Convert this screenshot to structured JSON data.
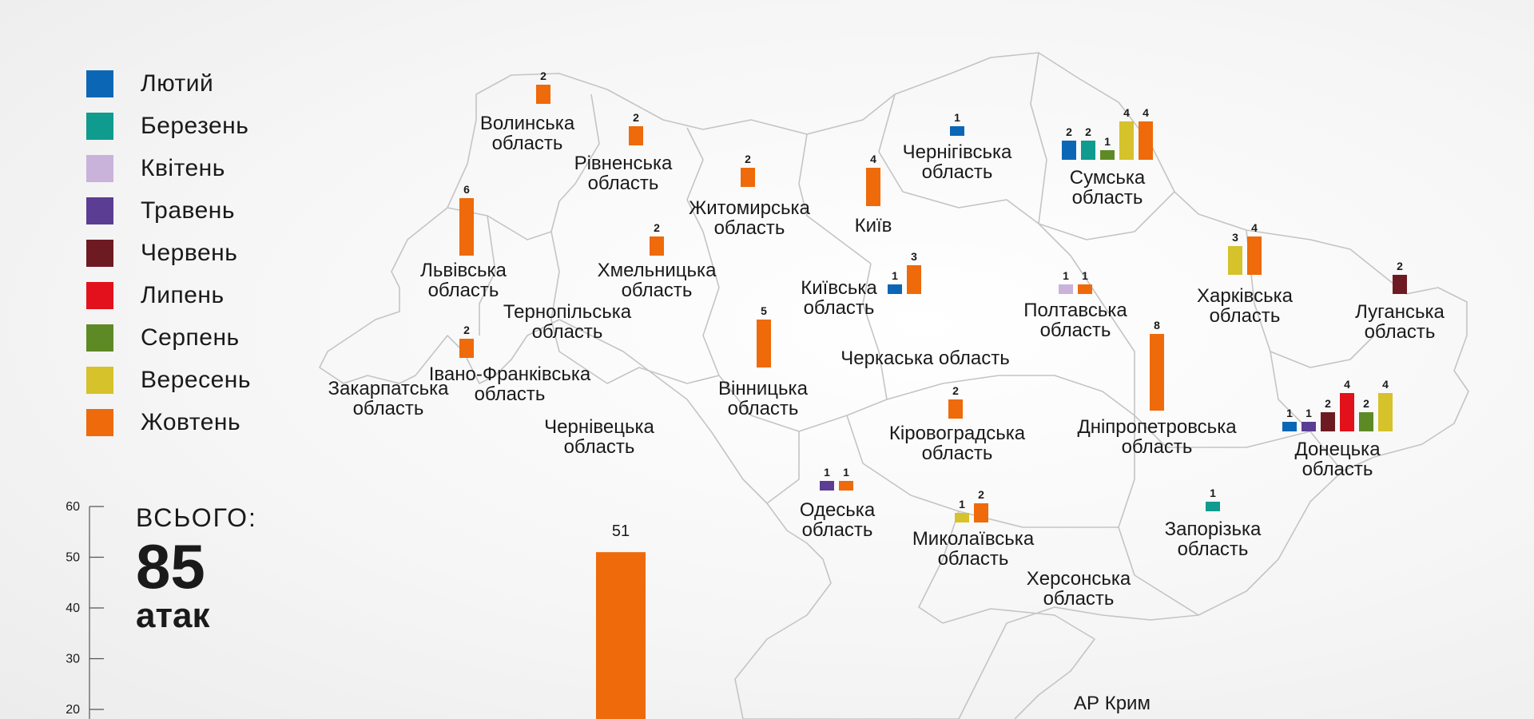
{
  "legend": {
    "items": [
      {
        "label": "Лютий",
        "color": "#0b67b5"
      },
      {
        "label": "Березень",
        "color": "#0f9b8e"
      },
      {
        "label": "Квітень",
        "color": "#c9b3da"
      },
      {
        "label": "Травень",
        "color": "#5b3d93"
      },
      {
        "label": "Червень",
        "color": "#6e1a22"
      },
      {
        "label": "Липень",
        "color": "#e2111b"
      },
      {
        "label": "Серпень",
        "color": "#5e8a25"
      },
      {
        "label": "Вересень",
        "color": "#d6c22a"
      },
      {
        "label": "Жовтень",
        "color": "#ee6a0a"
      }
    ]
  },
  "total": {
    "label": "ВСЬОГО:",
    "value": "85",
    "unit": "атак"
  },
  "chart_data": {
    "type": "bar",
    "month_order": [
      "Лютий",
      "Березень",
      "Квітень",
      "Травень",
      "Червень",
      "Липень",
      "Серпень",
      "Вересень",
      "Жовтень"
    ],
    "regions": [
      {
        "name": [
          "Волинська",
          "область"
        ],
        "series": [
          {
            "month": "Жовтень",
            "value": 2
          }
        ]
      },
      {
        "name": [
          "Рівненська",
          "область"
        ],
        "series": [
          {
            "month": "Жовтень",
            "value": 2
          }
        ]
      },
      {
        "name": [
          "Житомирська",
          "область"
        ],
        "series": [
          {
            "month": "Жовтень",
            "value": 2
          }
        ]
      },
      {
        "name": [
          "Київ"
        ],
        "series": [
          {
            "month": "Жовтень",
            "value": 4
          }
        ]
      },
      {
        "name": [
          "Чернігівська",
          "область"
        ],
        "series": [
          {
            "month": "Лютий",
            "value": 1
          }
        ]
      },
      {
        "name": [
          "Сумська",
          "область"
        ],
        "series": [
          {
            "month": "Лютий",
            "value": 2
          },
          {
            "month": "Березень",
            "value": 2
          },
          {
            "month": "Серпень",
            "value": 1
          },
          {
            "month": "Вересень",
            "value": 4
          },
          {
            "month": "Жовтень",
            "value": 4
          }
        ]
      },
      {
        "name": [
          "Львівська",
          "область"
        ],
        "series": [
          {
            "month": "Жовтень",
            "value": 6
          }
        ]
      },
      {
        "name": [
          "Хмельницька",
          "область"
        ],
        "series": [
          {
            "month": "Жовтень",
            "value": 2
          }
        ]
      },
      {
        "name": [
          "Київська",
          "область"
        ],
        "series": [
          {
            "month": "Лютий",
            "value": 1
          },
          {
            "month": "Жовтень",
            "value": 3
          }
        ]
      },
      {
        "name": [
          "Полтавська",
          "область"
        ],
        "series": [
          {
            "month": "Квітень",
            "value": 1
          },
          {
            "month": "Жовтень",
            "value": 1
          }
        ]
      },
      {
        "name": [
          "Харківська",
          "область"
        ],
        "series": [
          {
            "month": "Вересень",
            "value": 3
          },
          {
            "month": "Жовтень",
            "value": 4
          }
        ]
      },
      {
        "name": [
          "Луганська",
          "область"
        ],
        "series": [
          {
            "month": "Червень",
            "value": 2
          }
        ]
      },
      {
        "name": [
          "Тернопільська",
          "область"
        ],
        "series": []
      },
      {
        "name": [
          "Вінницька",
          "область"
        ],
        "series": [
          {
            "month": "Жовтень",
            "value": 5
          }
        ]
      },
      {
        "name": [
          "Черкаська область"
        ],
        "series": []
      },
      {
        "name": [
          "Дніпропетровська",
          "область"
        ],
        "series": [
          {
            "month": "Жовтень",
            "value": 8
          }
        ]
      },
      {
        "name": [
          "Івано-Франківська",
          "область"
        ],
        "series": [
          {
            "month": "Жовтень",
            "value": 2
          }
        ]
      },
      {
        "name": [
          "Закарпатська",
          "область"
        ],
        "series": []
      },
      {
        "name": [
          "Чернівецька",
          "область"
        ],
        "series": []
      },
      {
        "name": [
          "Кіровоградська",
          "область"
        ],
        "series": [
          {
            "month": "Жовтень",
            "value": 2
          }
        ]
      },
      {
        "name": [
          "Донецька",
          "область"
        ],
        "series": [
          {
            "month": "Лютий",
            "value": 1
          },
          {
            "month": "Травень",
            "value": 1
          },
          {
            "month": "Червень",
            "value": 2
          },
          {
            "month": "Липень",
            "value": 4
          },
          {
            "month": "Серпень",
            "value": 2
          },
          {
            "month": "Вересень",
            "value": 4
          }
        ]
      },
      {
        "name": [
          "Одеська",
          "область"
        ],
        "series": [
          {
            "month": "Травень",
            "value": 1
          },
          {
            "month": "Жовтень",
            "value": 1
          }
        ]
      },
      {
        "name": [
          "Миколаївська",
          "область"
        ],
        "series": [
          {
            "month": "Вересень",
            "value": 1
          },
          {
            "month": "Жовтень",
            "value": 2
          }
        ]
      },
      {
        "name": [
          "Запорізька",
          "область"
        ],
        "series": [
          {
            "month": "Березень",
            "value": 1
          }
        ]
      },
      {
        "name": [
          "Херсонська",
          "область"
        ],
        "series": []
      },
      {
        "name": [
          "АР Крим"
        ],
        "series": []
      }
    ],
    "total_axis": {
      "ticks": [
        60,
        50,
        40,
        30,
        20
      ],
      "ylim": [
        0,
        60
      ]
    },
    "total_bar": {
      "month": "Жовтень",
      "value": 51
    }
  }
}
